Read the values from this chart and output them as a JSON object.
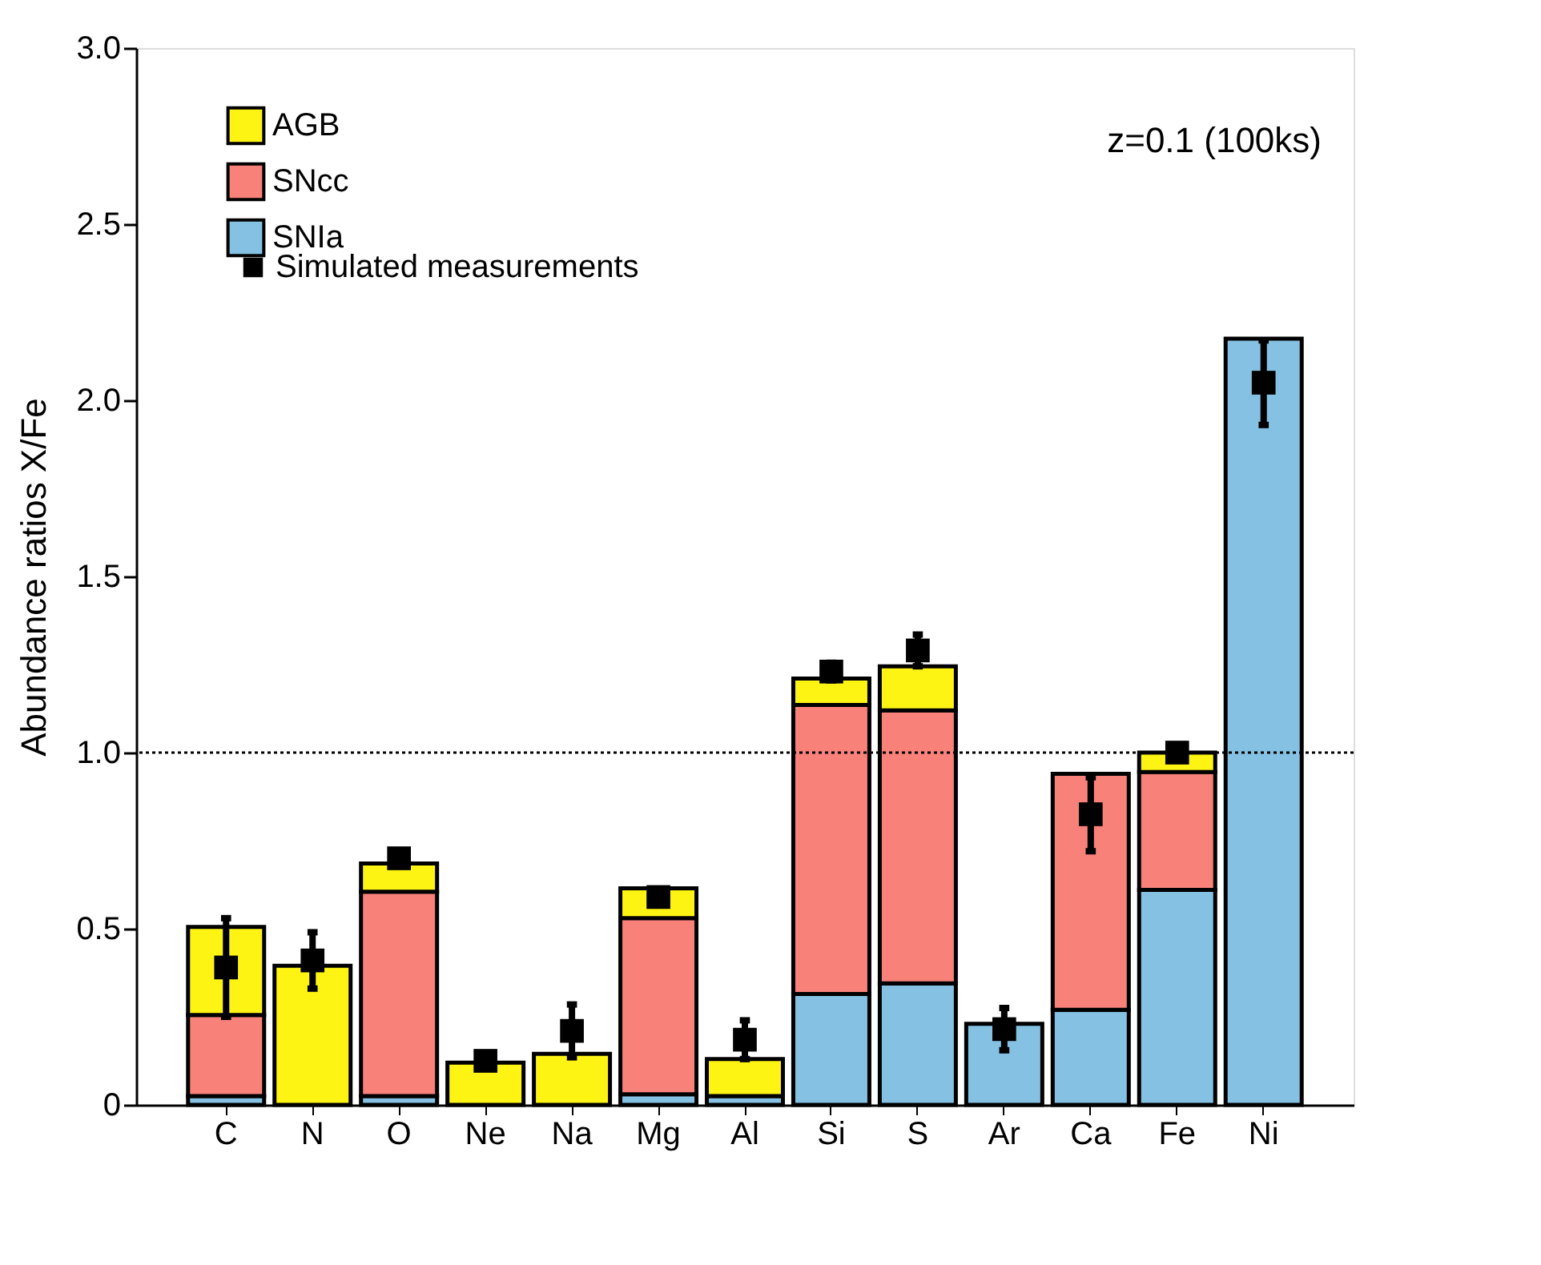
{
  "chart_data": {
    "type": "bar",
    "stacked": true,
    "ylabel": "Abundance ratios X/Fe",
    "categories": [
      "C",
      "N",
      "O",
      "Ne",
      "Na",
      "Mg",
      "Al",
      "Si",
      "S",
      "Ar",
      "Ca",
      "Fe",
      "Ni"
    ],
    "series": [
      {
        "name": "SNIa",
        "color": "#85c1e3",
        "values": [
          0.025,
          null,
          0.025,
          null,
          null,
          0.03,
          0.025,
          0.315,
          0.345,
          0.23,
          0.27,
          0.61,
          2.175
        ]
      },
      {
        "name": "SNcc",
        "color": "#f8817a",
        "values": [
          0.23,
          null,
          0.58,
          null,
          null,
          0.5,
          null,
          0.82,
          0.775,
          null,
          0.67,
          0.335,
          null
        ]
      },
      {
        "name": "AGB",
        "color": "#fef414",
        "values": [
          0.25,
          0.395,
          0.08,
          0.12,
          0.145,
          0.085,
          0.105,
          0.075,
          0.125,
          null,
          null,
          0.055,
          null
        ]
      },
      {
        "name": "Simulated measurements",
        "type": "scatter",
        "color": "#000000",
        "marker": "square",
        "x": [
          "C",
          "N",
          "O",
          "Ne",
          "Na",
          "Mg",
          "Al",
          "Si",
          "S",
          "Ar",
          "Ca",
          "Fe",
          "Ni"
        ],
        "values": [
          0.39,
          0.41,
          0.7,
          0.125,
          0.21,
          0.59,
          0.185,
          1.23,
          1.29,
          0.215,
          0.825,
          1.0,
          2.05
        ],
        "errors": [
          0.14,
          0.08,
          0.015,
          0.01,
          0.075,
          0.02,
          0.055,
          0.025,
          0.045,
          0.06,
          0.105,
          0.01,
          0.12
        ]
      }
    ],
    "ylim": [
      0,
      3.0
    ],
    "yticks": [
      0,
      0.5,
      {
        "value": 1,
        "label": "1.0"
      },
      1.5,
      {
        "value": 2,
        "label": "2.0"
      },
      2.5,
      {
        "value": 3,
        "label": "3.0"
      }
    ],
    "ref_lines": [
      {
        "axis": "y",
        "value": 1.0,
        "line_style": "dotted",
        "color": "#000000"
      }
    ],
    "annotations": [
      "z=0.1 (100ks)"
    ],
    "legend": "top left",
    "grid": false
  }
}
